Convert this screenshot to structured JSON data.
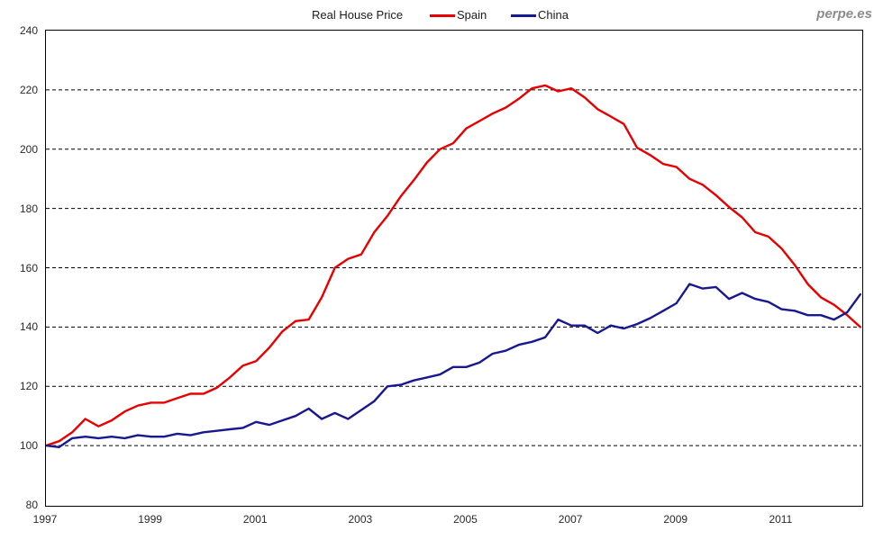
{
  "header": {
    "watermark": "perpe.es"
  },
  "chart_data": {
    "type": "line",
    "title": "Real House Price",
    "xlabel": "",
    "ylabel": "",
    "x_unit": "year (quarterly observations)",
    "xlim": [
      1997,
      2012.52
    ],
    "ylim": [
      80,
      240
    ],
    "y_ticks": [
      240,
      220,
      200,
      180,
      160,
      140,
      120,
      100,
      80
    ],
    "x_ticks": [
      1997,
      1999,
      2001,
      2003,
      2005,
      2007,
      2009,
      2011
    ],
    "grid": "horizontal dashed lines at each y tick between 100 and 220",
    "legend_position": "top center, right of title",
    "x": [
      1997.0,
      1997.25,
      1997.5,
      1997.75,
      1998.0,
      1998.25,
      1998.5,
      1998.75,
      1999.0,
      1999.25,
      1999.5,
      1999.75,
      2000.0,
      2000.25,
      2000.5,
      2000.75,
      2001.0,
      2001.25,
      2001.5,
      2001.75,
      2002.0,
      2002.25,
      2002.5,
      2002.75,
      2003.0,
      2003.25,
      2003.5,
      2003.75,
      2004.0,
      2004.25,
      2004.5,
      2004.75,
      2005.0,
      2005.25,
      2005.5,
      2005.75,
      2006.0,
      2006.25,
      2006.5,
      2006.75,
      2007.0,
      2007.25,
      2007.5,
      2007.75,
      2008.0,
      2008.25,
      2008.5,
      2008.75,
      2009.0,
      2009.25,
      2009.5,
      2009.75,
      2010.0,
      2010.25,
      2010.5,
      2010.75,
      2011.0,
      2011.25,
      2011.5,
      2011.75,
      2012.0,
      2012.25,
      2012.5
    ],
    "series": [
      {
        "name": "Spain",
        "color": "#e80000",
        "values": [
          100,
          101.5,
          104.5,
          109,
          106.5,
          108.5,
          111.5,
          113.5,
          114.5,
          114.5,
          116,
          117.5,
          117.5,
          119.5,
          123,
          127,
          128.5,
          133,
          138.5,
          142,
          142.5,
          150,
          160,
          163,
          164.5,
          172,
          177.5,
          184,
          189.5,
          195.5,
          200,
          202,
          207,
          209.5,
          212,
          214,
          217,
          220.5,
          221.5,
          219.5,
          220.5,
          217.5,
          213.5,
          211,
          208.5,
          200.5,
          198,
          195,
          194,
          190,
          188,
          184.5,
          180.5,
          177,
          172,
          170.5,
          166.5,
          161,
          154.5,
          150,
          147.5,
          144,
          140
        ]
      },
      {
        "name": "China",
        "color": "#181890",
        "values": [
          100,
          99.5,
          102.5,
          103,
          102.5,
          103,
          102.5,
          103.5,
          103,
          103,
          104,
          103.5,
          104.5,
          105,
          105.5,
          106,
          108,
          107,
          108.5,
          110,
          112.5,
          109,
          111,
          109,
          112,
          115,
          120,
          120.5,
          122,
          123,
          124,
          126.5,
          126.5,
          128,
          131,
          132,
          134,
          135,
          136.5,
          142.5,
          140.5,
          140.5,
          138,
          140.5,
          139.5,
          141,
          143,
          145.5,
          148,
          154.5,
          153,
          153.5,
          149.5,
          151.5,
          149.5,
          148.5,
          146,
          145.5,
          144,
          144,
          142.5,
          145,
          151
        ]
      }
    ]
  }
}
